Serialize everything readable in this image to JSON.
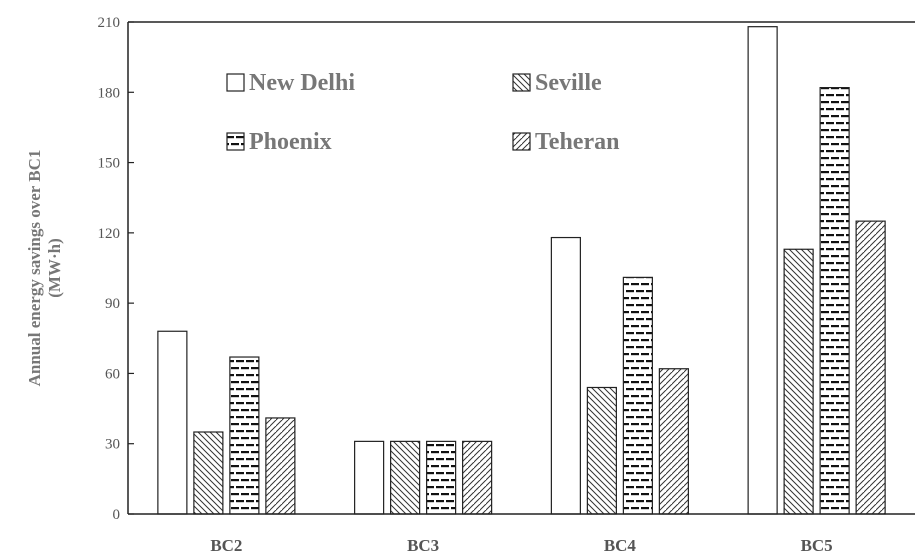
{
  "chart_data": {
    "type": "bar",
    "categories": [
      "BC2",
      "BC3",
      "BC4",
      "BC5"
    ],
    "series": [
      {
        "name": "New Delhi",
        "pattern": "empty",
        "values": [
          78,
          31,
          118,
          208
        ]
      },
      {
        "name": "Seville",
        "pattern": "hatch-back",
        "values": [
          35,
          31,
          54,
          113
        ]
      },
      {
        "name": "Phoenix",
        "pattern": "dashes",
        "values": [
          67,
          31,
          101,
          182
        ]
      },
      {
        "name": "Teheran",
        "pattern": "hatch-fwd",
        "values": [
          41,
          31,
          62,
          125
        ]
      }
    ],
    "ylabel_line1": "Annual energy savings over BC1",
    "ylabel_line2": "(MW·h)",
    "ylim": [
      0,
      210
    ],
    "yticks": [
      0,
      30,
      60,
      90,
      120,
      150,
      180,
      210
    ],
    "grid": false,
    "legend_placement": "top, inside plot, two columns"
  }
}
